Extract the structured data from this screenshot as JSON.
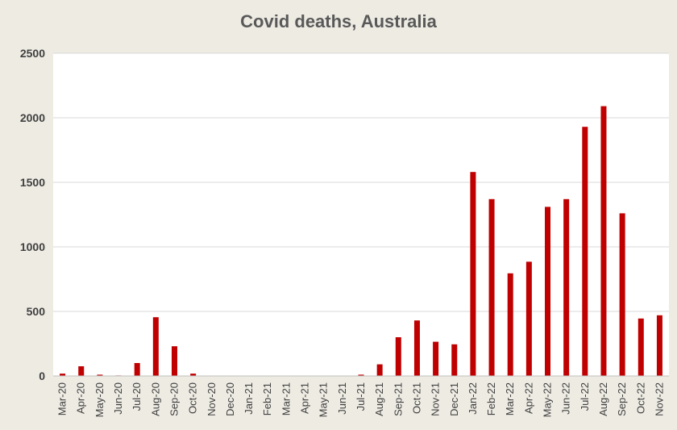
{
  "chart_data": {
    "type": "bar",
    "title": "Covid deaths, Australia",
    "xlabel": "",
    "ylabel": "",
    "ylim": [
      0,
      2500
    ],
    "yticks": [
      0,
      500,
      1000,
      1500,
      2000,
      2500
    ],
    "grid": true,
    "bar_color": "#c00000",
    "categories": [
      "Mar-20",
      "Apr-20",
      "May-20",
      "Jun-20",
      "Jul-20",
      "Aug-20",
      "Sep-20",
      "Oct-20",
      "Nov-20",
      "Dec-20",
      "Jan-21",
      "Feb-21",
      "Mar-21",
      "Apr-21",
      "May-21",
      "Jun-21",
      "Jul-21",
      "Aug-21",
      "Sep-21",
      "Oct-21",
      "Nov-21",
      "Dec-21",
      "Jan-22",
      "Feb-22",
      "Mar-22",
      "Apr-22",
      "May-22",
      "Jun-22",
      "Jul-22",
      "Aug-22",
      "Sep-22",
      "Oct-22",
      "Nov-22"
    ],
    "values": [
      18,
      75,
      10,
      4,
      100,
      455,
      230,
      18,
      3,
      3,
      0,
      0,
      0,
      3,
      0,
      0,
      10,
      90,
      300,
      430,
      265,
      245,
      1580,
      1370,
      795,
      885,
      1310,
      1370,
      1930,
      2090,
      1260,
      445,
      470
    ]
  }
}
